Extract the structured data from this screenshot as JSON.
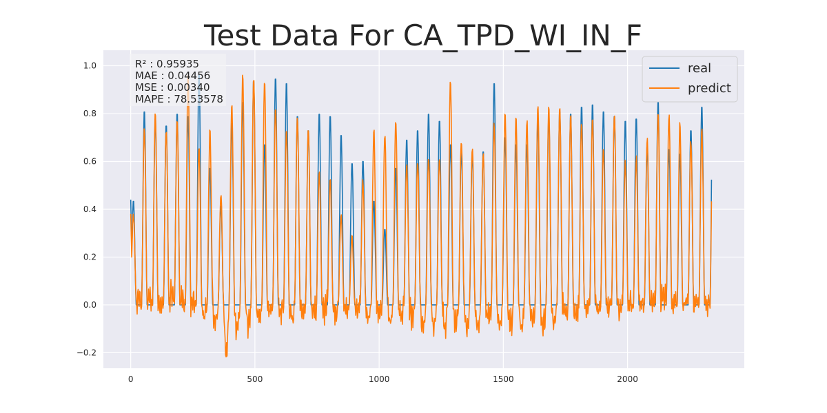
{
  "chart_data": {
    "type": "line",
    "title": "Test Data For CA_TPD_WI_IN_F",
    "xlabel": "",
    "ylabel": "",
    "xlim": [
      -110,
      2470
    ],
    "ylim": [
      -0.265,
      1.065
    ],
    "x_ticks": [
      0,
      500,
      1000,
      1500,
      2000
    ],
    "x_tick_labels": [
      "0",
      "500",
      "1000",
      "1500",
      "2000"
    ],
    "y_ticks": [
      -0.2,
      0.0,
      0.2,
      0.4,
      0.6,
      0.8,
      1.0
    ],
    "y_tick_labels": [
      "−0.2",
      "0.0",
      "0.2",
      "0.4",
      "0.6",
      "0.8",
      "1.0"
    ],
    "grid": true,
    "legend_position": "top-right",
    "metrics": [
      "R² : 0.95935",
      "MAE : 0.04456",
      "MSE : 0.00340",
      "MAPE : 78.53578"
    ],
    "series_style": [
      {
        "name": "real",
        "color": "#1f77b4"
      },
      {
        "name": "predict",
        "color": "#ff7f0e"
      }
    ],
    "cycle_length": 44,
    "n_points": 2340,
    "peaks": [
      0.44,
      0.82,
      0.79,
      0.76,
      0.81,
      0.8,
      0.98,
      0.58,
      0.42,
      0.77,
      0.86,
      0.95,
      0.68,
      0.96,
      0.94,
      0.8,
      0.74,
      0.81,
      0.8,
      0.72,
      0.6,
      0.61,
      0.44,
      0.32,
      0.58,
      0.7,
      0.74,
      0.81,
      0.78,
      0.68,
      0.65,
      0.64,
      0.65,
      0.94,
      0.71,
      0.68,
      0.68,
      0.79,
      0.8,
      0.82,
      0.81,
      0.84,
      0.85,
      0.82,
      0.8,
      0.78,
      0.79,
      0.67,
      0.86,
      0.66,
      0.64,
      0.74,
      0.84,
      0.82,
      0.76
    ],
    "pred_peaks": [
      0.38,
      0.74,
      0.8,
      0.74,
      0.78,
      0.96,
      0.66,
      0.73,
      0.46,
      0.84,
      0.97,
      0.96,
      0.95,
      0.83,
      0.73,
      0.79,
      0.73,
      0.56,
      0.52,
      0.38,
      0.28,
      0.52,
      0.73,
      0.72,
      0.78,
      0.59,
      0.61,
      0.62,
      0.62,
      0.94,
      0.69,
      0.66,
      0.64,
      0.76,
      0.8,
      0.78,
      0.77,
      0.84,
      0.84,
      0.82,
      0.8,
      0.76,
      0.78,
      0.66,
      0.8,
      0.6,
      0.62,
      0.7,
      0.8,
      0.8,
      0.76,
      0.68,
      0.74,
      0.66,
      0.68
    ],
    "troughs": [
      0.03,
      0.04,
      -0.01,
      0.05,
      0.03,
      0.02,
      -0.05,
      -0.08,
      -0.2,
      -0.12,
      -0.08,
      -0.04,
      -0.03,
      -0.02,
      -0.05,
      -0.03,
      -0.04,
      -0.02,
      -0.05,
      -0.03,
      -0.02,
      -0.04,
      -0.03,
      -0.05,
      -0.04,
      -0.06,
      -0.08,
      -0.1,
      -0.09,
      -0.08,
      -0.1,
      -0.08,
      -0.06,
      -0.09,
      -0.08,
      -0.09,
      -0.07,
      -0.08,
      -0.06,
      -0.05,
      -0.04,
      -0.03,
      -0.02,
      -0.02,
      -0.01,
      0.01,
      0.02,
      0.03,
      0.04,
      0.02,
      0.02,
      0.01,
      0.0,
      -0.02,
      -0.05
    ]
  },
  "legend": {
    "real_label": "real",
    "predict_label": "predict"
  }
}
